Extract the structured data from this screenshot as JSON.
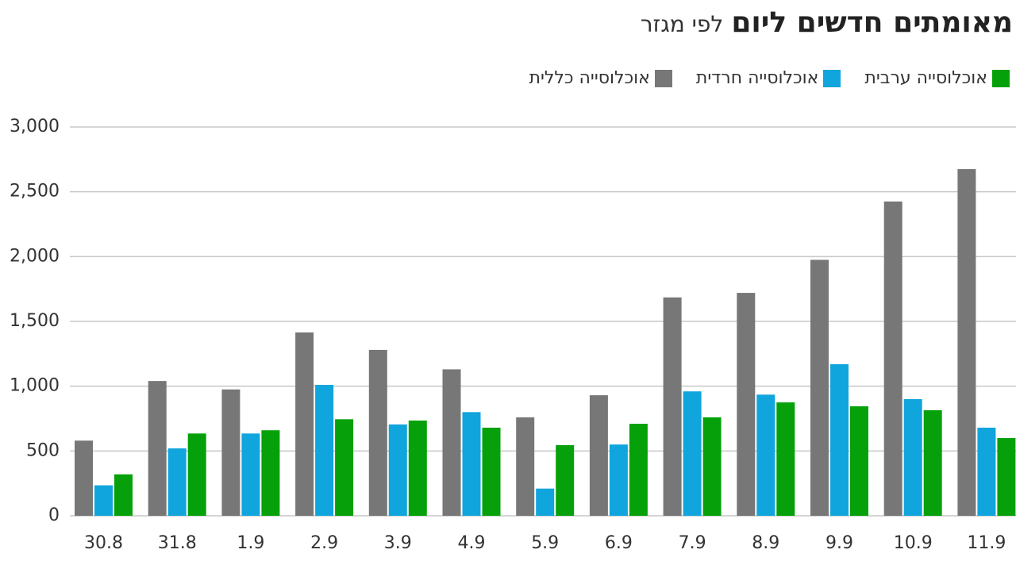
{
  "chart_data": {
    "type": "bar",
    "title": "מאומתים חדשים ליום",
    "subtitle": "לפי מגזר",
    "categories": [
      "30.8",
      "31.8",
      "1.9",
      "2.9",
      "3.9",
      "4.9",
      "5.9",
      "6.9",
      "7.9",
      "8.9",
      "9.9",
      "10.9",
      "11.9"
    ],
    "series": [
      {
        "name": "אוכלוסייה כללית",
        "color": "#777777",
        "values": [
          580,
          1040,
          975,
          1415,
          1280,
          1130,
          760,
          930,
          1685,
          1720,
          1975,
          2425,
          2675
        ]
      },
      {
        "name": "אוכלוסייה חרדית",
        "color": "#10a5dc",
        "values": [
          235,
          520,
          635,
          1010,
          705,
          800,
          210,
          550,
          960,
          935,
          1170,
          900,
          680
        ]
      },
      {
        "name": "אוכלוסייה ערבית",
        "color": "#06a10a",
        "values": [
          320,
          635,
          660,
          745,
          735,
          680,
          545,
          710,
          760,
          875,
          845,
          815,
          600
        ]
      }
    ],
    "ylim": [
      0,
      3000
    ],
    "yticks": [
      0,
      500,
      {
        "value": 1000,
        "label": "1,000"
      },
      {
        "value": 1500,
        "label": "1,500"
      },
      {
        "value": 2000,
        "label": "2,000"
      },
      {
        "value": 2500,
        "label": "2,500"
      },
      {
        "value": 3000,
        "label": "3,000"
      }
    ],
    "grid": true,
    "legend": "top-right"
  }
}
